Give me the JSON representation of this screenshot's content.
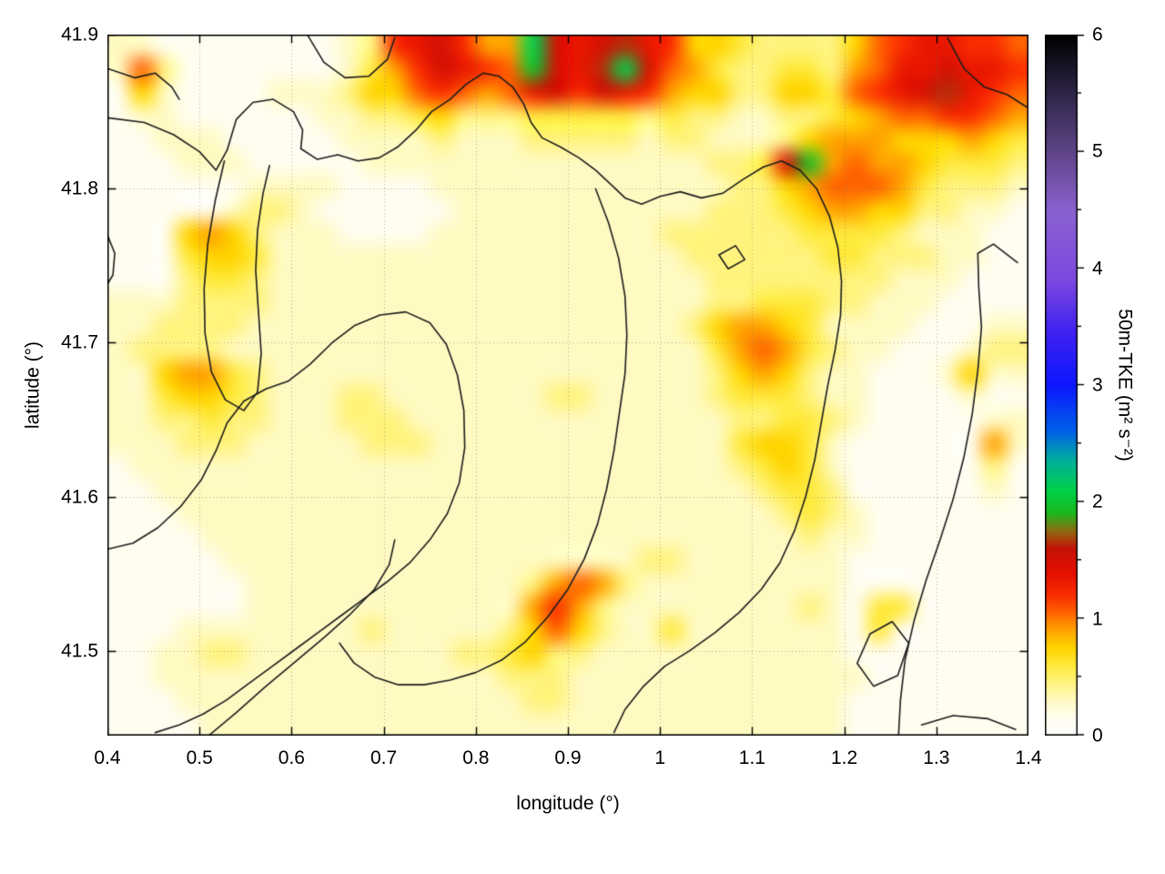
{
  "figure": {
    "background": "#ffffff",
    "border_color": "#000000",
    "grid_color": "#888888"
  },
  "axes": {
    "x": {
      "label": "longitude (°)",
      "ticks": [
        "0.4",
        "0.5",
        "0.6",
        "0.7",
        "0.8",
        "0.9",
        "1",
        "1.1",
        "1.2",
        "1.3",
        "1.4"
      ],
      "tick_values": [
        0.4,
        0.5,
        0.6,
        0.7,
        0.8,
        0.9,
        1.0,
        1.1,
        1.2,
        1.3,
        1.4
      ],
      "min": 0.4,
      "max": 1.4
    },
    "y": {
      "label": "latitude (°)",
      "ticks": [
        "41.5",
        "41.6",
        "41.7",
        "41.8",
        "41.9"
      ],
      "tick_values": [
        41.5,
        41.6,
        41.7,
        41.8,
        41.9
      ],
      "min": 41.445,
      "max": 41.9
    },
    "colorbar": {
      "label": "50m-TKE (m² s⁻²)",
      "ticks": [
        "0",
        "1",
        "2",
        "3",
        "4",
        "5",
        "6"
      ],
      "tick_values": [
        0,
        1,
        2,
        3,
        4,
        5,
        6
      ],
      "min": 0,
      "max": 6
    }
  },
  "chart_data": {
    "type": "heatmap",
    "title": "",
    "x_range": [
      0.4,
      1.4
    ],
    "y_range": [
      41.445,
      41.9
    ],
    "value_range": [
      0,
      6
    ],
    "grid_cols": 40,
    "grid_rows": 30,
    "value_scale_per_digit": 0.15,
    "grid_hex_rows": [
      [
        "2211",
        "1111",
        "1123",
        "89A8",
        "66EA",
        "9AB9",
        "8554",
        "3333",
        "5789",
        "9887"
      ],
      [
        "2731",
        "1111",
        "1124",
        "68A9",
        "87DA",
        "9BEA",
        "7643",
        "3443",
        "6799",
        "A998"
      ],
      [
        "1521",
        "1112",
        "2235",
        "5787",
        "679A",
        "8A98",
        "6553",
        "3554",
        "789A",
        "B987"
      ],
      [
        "1221",
        "1111",
        "1223",
        "3453",
        "3344",
        "4443",
        "4332",
        "2334",
        "5677",
        "8876"
      ],
      [
        "1122",
        "2111",
        "1122",
        "2232",
        "2233",
        "3332",
        "3322",
        "2356",
        "6655",
        "5654"
      ],
      [
        "1112",
        "2211",
        "1112",
        "2222",
        "2222",
        "2222",
        "2233",
        "4AD6",
        "7665",
        "4443"
      ],
      [
        "1111",
        "1122",
        "2211",
        "1122",
        "2222",
        "2222",
        "2223",
        "3567",
        "7764",
        "3332"
      ],
      [
        "1111",
        "1233",
        "2111",
        "1112",
        "2222",
        "2222",
        "2233",
        "3456",
        "6553",
        "3221"
      ],
      [
        "1115",
        "6532",
        "2211",
        "1122",
        "2222",
        "2222",
        "3333",
        "3344",
        "4432",
        "2211"
      ],
      [
        "1114",
        "5542",
        "2222",
        "2222",
        "2222",
        "2222",
        "2333",
        "3334",
        "4333",
        "2211"
      ],
      [
        "1113",
        "4432",
        "2222",
        "2222",
        "2222",
        "2222",
        "2233",
        "3333",
        "3322",
        "2111"
      ],
      [
        "2223",
        "3332",
        "2222",
        "2222",
        "2222",
        "2222",
        "2233",
        "4443",
        "3222",
        "1111"
      ],
      [
        "2233",
        "3322",
        "2222",
        "2222",
        "2222",
        "2222",
        "2356",
        "6542",
        "2221",
        "1122"
      ],
      [
        "2333",
        "3222",
        "2222",
        "2222",
        "2222",
        "2222",
        "2246",
        "7643",
        "2211",
        "1233"
      ],
      [
        "2256",
        "6432",
        "2222",
        "2222",
        "2222",
        "2222",
        "2235",
        "6532",
        "2111",
        "2522"
      ],
      [
        "2245",
        "5432",
        "2233",
        "2222",
        "2223",
        "3222",
        "2234",
        "4432",
        "2111",
        "1211"
      ],
      [
        "2233",
        "4332",
        "2233",
        "3222",
        "2222",
        "2222",
        "2223",
        "3443",
        "2111",
        "1122"
      ],
      [
        "2223",
        "3322",
        "2223",
        "3322",
        "2222",
        "2222",
        "2224",
        "5542",
        "1111",
        "1162"
      ],
      [
        "1222",
        "2222",
        "2222",
        "2222",
        "2222",
        "2222",
        "2223",
        "4542",
        "1111",
        "1131"
      ],
      [
        "1122",
        "2222",
        "2222",
        "2222",
        "2222",
        "2222",
        "2222",
        "3443",
        "1111",
        "1121"
      ],
      [
        "1112",
        "2222",
        "2222",
        "2222",
        "2222",
        "2222",
        "2222",
        "2343",
        "2111",
        "1111"
      ],
      [
        "1111",
        "2222",
        "2222",
        "2222",
        "2222",
        "2222",
        "2222",
        "2232",
        "2111",
        "1111"
      ],
      [
        "1111",
        "1222",
        "2222",
        "2222",
        "2222",
        "2223",
        "3222",
        "2222",
        "1111",
        "1111"
      ],
      [
        "1111",
        "1122",
        "2222",
        "2222",
        "2236",
        "7632",
        "2222",
        "2222",
        "1111",
        "1111"
      ],
      [
        "1111",
        "1122",
        "2222",
        "2222",
        "2268",
        "6322",
        "2222",
        "2232",
        "1441",
        "1111"
      ],
      [
        "1112",
        "2222",
        "2223",
        "2222",
        "2357",
        "5322",
        "4222",
        "2222",
        "1411",
        "1111"
      ],
      [
        "1122",
        "3322",
        "2222",
        "2223",
        "3453",
        "3222",
        "2222",
        "2222",
        "1111",
        "1111"
      ],
      [
        "1122",
        "2222",
        "2222",
        "2222",
        "2333",
        "2222",
        "2222",
        "2222",
        "2111",
        "1111"
      ],
      [
        "1112",
        "2222",
        "2222",
        "2222",
        "2233",
        "2222",
        "2222",
        "2222",
        "1111",
        "1111"
      ],
      [
        "1111",
        "2222",
        "2222",
        "2222",
        "2222",
        "2222",
        "2222",
        "2222",
        "1111",
        "1111"
      ]
    ],
    "colormap_stops": [
      [
        0.0,
        "#ffffff"
      ],
      [
        0.15,
        "#fffdf0"
      ],
      [
        0.3,
        "#fffac2"
      ],
      [
        0.45,
        "#fff37e"
      ],
      [
        0.6,
        "#ffe93c"
      ],
      [
        0.75,
        "#ffd400"
      ],
      [
        0.9,
        "#ffa300"
      ],
      [
        1.05,
        "#ff6300"
      ],
      [
        1.2,
        "#fa2d00"
      ],
      [
        1.4,
        "#e31000"
      ],
      [
        1.6,
        "#c51307"
      ],
      [
        1.75,
        "#8f6a10"
      ],
      [
        1.9,
        "#1cb81c"
      ],
      [
        2.1,
        "#00d24b"
      ],
      [
        2.35,
        "#00b09b"
      ],
      [
        2.6,
        "#0063e8"
      ],
      [
        3.0,
        "#0d17ff"
      ],
      [
        3.45,
        "#3f21f0"
      ],
      [
        3.9,
        "#7d49e0"
      ],
      [
        4.5,
        "#8a62cf"
      ],
      [
        5.0,
        "#5f4588"
      ],
      [
        5.5,
        "#2e2647"
      ],
      [
        6.0,
        "#000000"
      ]
    ],
    "contour_color": "#1c1c1c",
    "contour_line_width": 1.6,
    "contours": [
      [
        [
          0.4,
          41.878
        ],
        [
          0.43,
          41.872
        ],
        [
          0.452,
          41.875
        ],
        [
          0.47,
          41.866
        ],
        [
          0.478,
          41.858
        ]
      ],
      [
        [
          0.4,
          41.846
        ],
        [
          0.44,
          41.843
        ],
        [
          0.472,
          41.835
        ],
        [
          0.5,
          41.824
        ],
        [
          0.518,
          41.812
        ],
        [
          0.53,
          41.825
        ],
        [
          0.54,
          41.845
        ],
        [
          0.558,
          41.856
        ],
        [
          0.58,
          41.858
        ],
        [
          0.602,
          41.85
        ],
        [
          0.612,
          41.838
        ],
        [
          0.61,
          41.826
        ],
        [
          0.628,
          41.819
        ],
        [
          0.65,
          41.822
        ],
        [
          0.672,
          41.818
        ],
        [
          0.695,
          41.82
        ],
        [
          0.715,
          41.827
        ],
        [
          0.735,
          41.838
        ],
        [
          0.752,
          41.85
        ],
        [
          0.772,
          41.858
        ],
        [
          0.79,
          41.868
        ],
        [
          0.808,
          41.875
        ],
        [
          0.825,
          41.873
        ],
        [
          0.84,
          41.866
        ],
        [
          0.852,
          41.855
        ],
        [
          0.86,
          41.843
        ],
        [
          0.872,
          41.833
        ],
        [
          0.892,
          41.827
        ],
        [
          0.912,
          41.82
        ],
        [
          0.93,
          41.812
        ],
        [
          0.948,
          41.802
        ],
        [
          0.962,
          41.794
        ],
        [
          0.98,
          41.79
        ],
        [
          1.0,
          41.795
        ],
        [
          1.022,
          41.798
        ],
        [
          1.045,
          41.794
        ],
        [
          1.068,
          41.797
        ],
        [
          1.09,
          41.806
        ],
        [
          1.112,
          41.814
        ],
        [
          1.132,
          41.818
        ],
        [
          1.152,
          41.812
        ],
        [
          1.17,
          41.8
        ],
        [
          1.184,
          41.782
        ],
        [
          1.193,
          41.762
        ],
        [
          1.197,
          41.74
        ],
        [
          1.196,
          41.718
        ],
        [
          1.19,
          41.695
        ],
        [
          1.182,
          41.672
        ],
        [
          1.175,
          41.648
        ],
        [
          1.168,
          41.624
        ],
        [
          1.158,
          41.6
        ],
        [
          1.146,
          41.578
        ],
        [
          1.13,
          41.557
        ],
        [
          1.11,
          41.54
        ],
        [
          1.086,
          41.525
        ],
        [
          1.06,
          41.512
        ],
        [
          1.032,
          41.5
        ],
        [
          1.005,
          41.49
        ],
        [
          0.982,
          41.477
        ],
        [
          0.962,
          41.462
        ],
        [
          0.95,
          41.447
        ]
      ],
      [
        [
          0.93,
          41.8
        ],
        [
          0.944,
          41.778
        ],
        [
          0.955,
          41.755
        ],
        [
          0.962,
          41.73
        ],
        [
          0.964,
          41.705
        ],
        [
          0.962,
          41.68
        ],
        [
          0.956,
          41.655
        ],
        [
          0.95,
          41.63
        ],
        [
          0.942,
          41.605
        ],
        [
          0.932,
          41.582
        ],
        [
          0.918,
          41.56
        ],
        [
          0.9,
          41.54
        ],
        [
          0.878,
          41.522
        ],
        [
          0.854,
          41.506
        ],
        [
          0.828,
          41.494
        ],
        [
          0.8,
          41.486
        ],
        [
          0.772,
          41.481
        ],
        [
          0.744,
          41.478
        ],
        [
          0.716,
          41.478
        ],
        [
          0.69,
          41.483
        ],
        [
          0.668,
          41.492
        ],
        [
          0.652,
          41.505
        ]
      ],
      [
        [
          0.4,
          41.566
        ],
        [
          0.428,
          41.57
        ],
        [
          0.455,
          41.58
        ],
        [
          0.48,
          41.594
        ],
        [
          0.502,
          41.611
        ],
        [
          0.518,
          41.63
        ],
        [
          0.53,
          41.648
        ],
        [
          0.548,
          41.662
        ],
        [
          0.572,
          41.67
        ],
        [
          0.596,
          41.675
        ],
        [
          0.62,
          41.686
        ],
        [
          0.644,
          41.7
        ],
        [
          0.668,
          41.711
        ],
        [
          0.696,
          41.718
        ],
        [
          0.724,
          41.72
        ],
        [
          0.75,
          41.713
        ],
        [
          0.768,
          41.699
        ],
        [
          0.78,
          41.679
        ],
        [
          0.787,
          41.656
        ],
        [
          0.788,
          41.632
        ],
        [
          0.782,
          41.609
        ],
        [
          0.769,
          41.589
        ],
        [
          0.75,
          41.572
        ],
        [
          0.728,
          41.557
        ],
        [
          0.704,
          41.545
        ],
        [
          0.679,
          41.534
        ],
        [
          0.654,
          41.523
        ],
        [
          0.629,
          41.512
        ],
        [
          0.604,
          41.501
        ],
        [
          0.579,
          41.49
        ],
        [
          0.554,
          41.479
        ],
        [
          0.529,
          41.468
        ],
        [
          0.504,
          41.459
        ],
        [
          0.478,
          41.452
        ],
        [
          0.452,
          41.447
        ]
      ],
      [
        [
          0.51,
          41.445
        ],
        [
          0.54,
          41.46
        ],
        [
          0.572,
          41.477
        ],
        [
          0.604,
          41.493
        ],
        [
          0.636,
          41.509
        ],
        [
          0.664,
          41.524
        ],
        [
          0.69,
          41.54
        ],
        [
          0.706,
          41.556
        ],
        [
          0.712,
          41.572
        ]
      ],
      [
        [
          0.527,
          41.818
        ],
        [
          0.517,
          41.792
        ],
        [
          0.509,
          41.764
        ],
        [
          0.505,
          41.735
        ],
        [
          0.506,
          41.706
        ],
        [
          0.513,
          41.681
        ],
        [
          0.528,
          41.663
        ],
        [
          0.548,
          41.656
        ],
        [
          0.563,
          41.668
        ],
        [
          0.567,
          41.693
        ],
        [
          0.564,
          41.72
        ],
        [
          0.561,
          41.747
        ],
        [
          0.563,
          41.773
        ],
        [
          0.569,
          41.797
        ],
        [
          0.576,
          41.815
        ]
      ],
      [
        [
          1.388,
          41.752
        ],
        [
          1.362,
          41.764
        ],
        [
          1.345,
          41.758
        ],
        [
          1.346,
          41.736
        ],
        [
          1.349,
          41.71
        ],
        [
          1.345,
          41.682
        ],
        [
          1.339,
          41.654
        ],
        [
          1.33,
          41.626
        ],
        [
          1.318,
          41.598
        ],
        [
          1.304,
          41.572
        ],
        [
          1.289,
          41.546
        ],
        [
          1.276,
          41.52
        ],
        [
          1.266,
          41.494
        ],
        [
          1.261,
          41.468
        ],
        [
          1.259,
          41.446
        ]
      ],
      [
        [
          1.312,
          41.898
        ],
        [
          1.33,
          41.878
        ],
        [
          1.352,
          41.866
        ],
        [
          1.377,
          41.861
        ],
        [
          1.398,
          41.853
        ]
      ],
      [
        [
          0.618,
          41.899
        ],
        [
          0.635,
          41.882
        ],
        [
          0.658,
          41.872
        ],
        [
          0.684,
          41.873
        ],
        [
          0.704,
          41.884
        ],
        [
          0.712,
          41.898
        ]
      ],
      [
        [
          1.064,
          41.757
        ],
        [
          1.082,
          41.763
        ],
        [
          1.092,
          41.754
        ],
        [
          1.074,
          41.748
        ],
        [
          1.064,
          41.757
        ]
      ],
      [
        [
          1.214,
          41.492
        ],
        [
          1.228,
          41.511
        ],
        [
          1.252,
          41.519
        ],
        [
          1.27,
          41.505
        ],
        [
          1.258,
          41.484
        ],
        [
          1.232,
          41.477
        ],
        [
          1.214,
          41.492
        ]
      ],
      [
        [
          1.284,
          41.452
        ],
        [
          1.318,
          41.458
        ],
        [
          1.356,
          41.456
        ],
        [
          1.386,
          41.449
        ]
      ],
      [
        [
          0.4,
          41.77
        ],
        [
          0.408,
          41.758
        ],
        [
          0.406,
          41.744
        ],
        [
          0.4,
          41.738
        ]
      ]
    ]
  }
}
